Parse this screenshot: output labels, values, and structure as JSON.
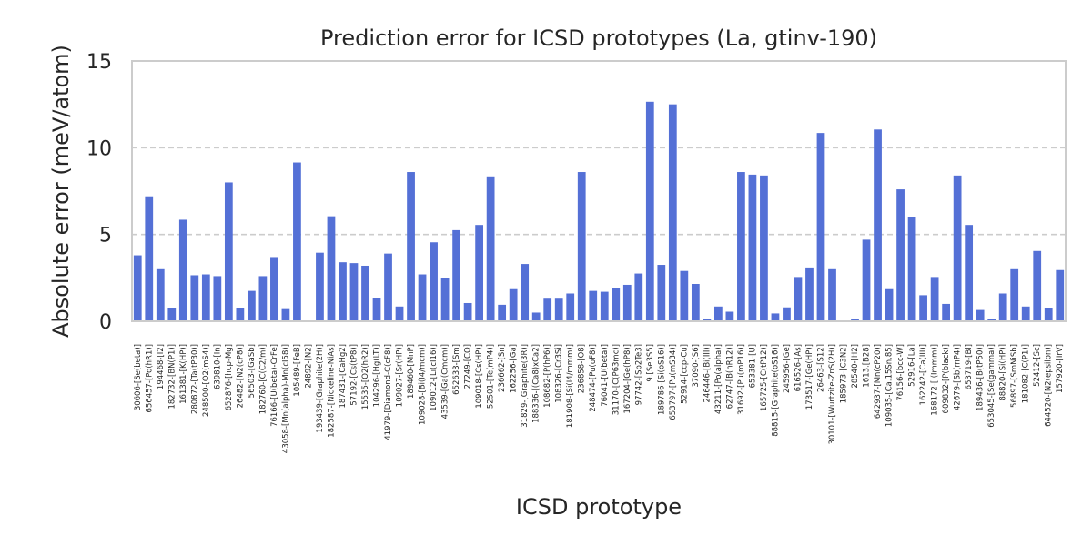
{
  "chart_data": {
    "type": "bar",
    "title": "Prediction error for ICSD prototypes (La, gtinv-190)",
    "xlabel": "ICSD prototype",
    "ylabel": "Absolute error (meV/atom)",
    "ylim": [
      0,
      15
    ],
    "yticks": [
      0,
      5,
      10,
      15
    ],
    "grid": "horizontal dashed",
    "bar_color": "#5470d6",
    "categories": [
      "30606-[Se(beta)]",
      "656457-[Po(hR1)]",
      "194468-[I2]",
      "182732-[BN(P1)]",
      "161381-[K(HP)]",
      "280872-[Ta(tP30)]",
      "248500-[O2(mS4)]",
      "639810-[In]",
      "652876-[hcp-Mg]",
      "26482-[N2(cP8)]",
      "56503-[GaSb]",
      "182760-[C(C2/m)]",
      "76166-[U(beta)-CrFe]",
      "43058-[Mn(alpha)-Mn(cI58)]",
      "105489-[FeB]",
      "24892-[N2]",
      "193439-[Graphite(2H)]",
      "182587-[Nickeline-NiAs]",
      "187431-[CaHg2]",
      "57192-[Cs(tP8)]",
      "15535-[O2(hR2)]",
      "104296-[Hg(LT)]",
      "41979-[Diamond-C(cF8)]",
      "109027-[Sr(HP)]",
      "189460-[MnP]",
      "109028-[Bi(I4/mcm)]",
      "109012-[Li(cI16)]",
      "43539-[Ga(Cmcm)]",
      "652633-[Sm]",
      "27249-[CO]",
      "109018-[Cs(HP)]",
      "52501-[Te(mP4)]",
      "236662-[Sn]",
      "162256-[Ga]",
      "31829-[Graphite(3R)]",
      "188336-[(Ca8)xCa2]",
      "108682-[P(hP6)]",
      "108326-[Cr3Si]",
      "181908-[Si(I4/mmm)]",
      "236858-[O8]",
      "248474-[Pu(oF8)]",
      "76041-[U(beta)]",
      "31170-[C(P63mc)]",
      "167204-[Ge(hP8)]",
      "97742-[Sb2Te3]",
      "9.[Se3S5]",
      "189786-[Si(oS16)]",
      "653797-[Pu(mS34)]",
      "52914-[ccp-Cu]",
      "37090-[S6]",
      "246446-[Bi(III)]",
      "43211-[Po(alpha)]",
      "62747-[B(hR12)]",
      "31692-[Pu(mP16)]",
      "653381-[U]",
      "165725-[C(tP12)]",
      "88815-[Graphite(oS16)]",
      "245956-[Ge]",
      "616526-[As]",
      "173517-[Ge(HP)]",
      "26463-[S12]",
      "30101-[Wurtzite-ZnS(2H)]",
      "185973-[C3N2]",
      "28540-[H2]",
      "1613.[B28]",
      "642937-[Mn(cP20)]",
      "109035-[Ca.15Sn.85]",
      "76156-[bcc-W]",
      "52916-[La]",
      "162242-[Ca(III)]",
      "168172-[I(Immm)]",
      "609832-[P(black)]",
      "42679-[Sb(mP4)]",
      "653719-[Bi]",
      "189436-[B(tP50)]",
      "653045-[Se(gamma)]",
      "88820-[Si(HP)]",
      "56897-[SmNiSb]",
      "181082-[C(P1)]",
      "52412-[Sc]",
      "644520-[N2(epsilon)]",
      "157920-[IrV]"
    ],
    "values": [
      3.8,
      7.2,
      3.0,
      0.75,
      5.85,
      2.65,
      2.7,
      2.6,
      8.0,
      0.75,
      1.75,
      2.6,
      3.7,
      0.7,
      9.15,
      0.0,
      3.95,
      6.05,
      3.4,
      3.35,
      3.2,
      1.35,
      3.9,
      0.85,
      8.6,
      2.7,
      4.55,
      2.5,
      5.25,
      1.05,
      5.55,
      8.35,
      0.95,
      1.85,
      3.3,
      0.5,
      1.3,
      1.3,
      1.6,
      8.6,
      1.75,
      1.7,
      1.9,
      2.1,
      2.75,
      12.65,
      3.25,
      12.5,
      2.9,
      2.15,
      0.15,
      0.85,
      0.55,
      8.6,
      8.45,
      8.4,
      0.45,
      0.8,
      2.55,
      3.1,
      10.85,
      3.0,
      0.05,
      0.15,
      4.7,
      11.05,
      1.85,
      7.6,
      6.0,
      1.5,
      2.55,
      1.0,
      8.4,
      5.55,
      0.65,
      0.15,
      1.6,
      3.0,
      0.85,
      4.05,
      0.75,
      2.95
    ]
  }
}
